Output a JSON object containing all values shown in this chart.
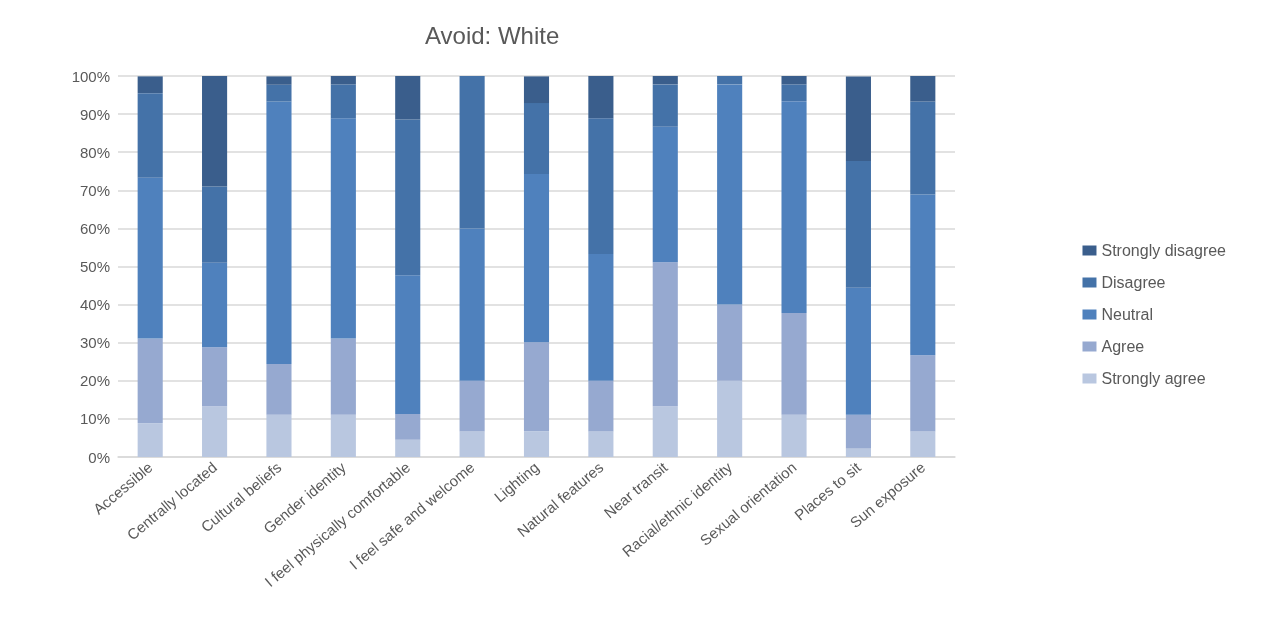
{
  "chart_data": {
    "type": "bar",
    "title": "Avoid: White",
    "stacked": true,
    "grid": "y",
    "legend": "right",
    "categories": [
      "Accessible",
      "Centrally located",
      "Cultural beliefs",
      "Gender identity",
      "I feel physically comfortable",
      "I feel safe and welcome",
      "Lighting",
      "Natural features",
      "Near transit",
      "Racial/ethnic identity",
      "Sexual orientation",
      "Places to sit",
      "Sun exposure"
    ],
    "ylim": [
      0,
      100
    ],
    "yticks": [
      {
        "value": 0,
        "label": "0%"
      },
      {
        "value": 10,
        "label": "10%"
      },
      {
        "value": 20,
        "label": "20%"
      },
      {
        "value": 30,
        "label": "30%"
      },
      {
        "value": 40,
        "label": "40%"
      },
      {
        "value": 50,
        "label": "50%"
      },
      {
        "value": 60,
        "label": "60%"
      },
      {
        "value": 70,
        "label": "70%"
      },
      {
        "value": 80,
        "label": "80%"
      },
      {
        "value": 90,
        "label": "90%"
      },
      {
        "value": 100,
        "label": "100%"
      }
    ],
    "series": [
      {
        "name": "Strongly agree",
        "color": "#b9c7e0",
        "values": [
          8.9,
          13.3,
          11.1,
          11.1,
          4.5,
          6.7,
          6.8,
          6.7,
          13.3,
          20,
          11.1,
          2.2,
          6.7
        ]
      },
      {
        "name": "Agree",
        "color": "#96a9d0",
        "values": [
          22.2,
          15.5,
          13.3,
          20,
          6.8,
          13.3,
          23.3,
          13.3,
          37.8,
          20,
          26.7,
          8.9,
          20
        ]
      },
      {
        "name": "Neutral",
        "color": "#4f81bd",
        "values": [
          42.2,
          22.2,
          68.9,
          57.8,
          36.4,
          40,
          44.2,
          33.3,
          35.6,
          57.8,
          55.6,
          33.3,
          42.2
        ]
      },
      {
        "name": "Disagree",
        "color": "#4472a8",
        "values": [
          22.2,
          20,
          4.4,
          8.9,
          40.9,
          40,
          18.6,
          35.6,
          11.1,
          2.2,
          4.4,
          33.3,
          24.4
        ]
      },
      {
        "name": "Strongly disagree",
        "color": "#3a5e8c",
        "values": [
          4.4,
          29,
          2.2,
          2.2,
          11.4,
          0,
          7,
          11.1,
          2.2,
          0,
          2.2,
          22.2,
          6.7
        ]
      }
    ]
  }
}
